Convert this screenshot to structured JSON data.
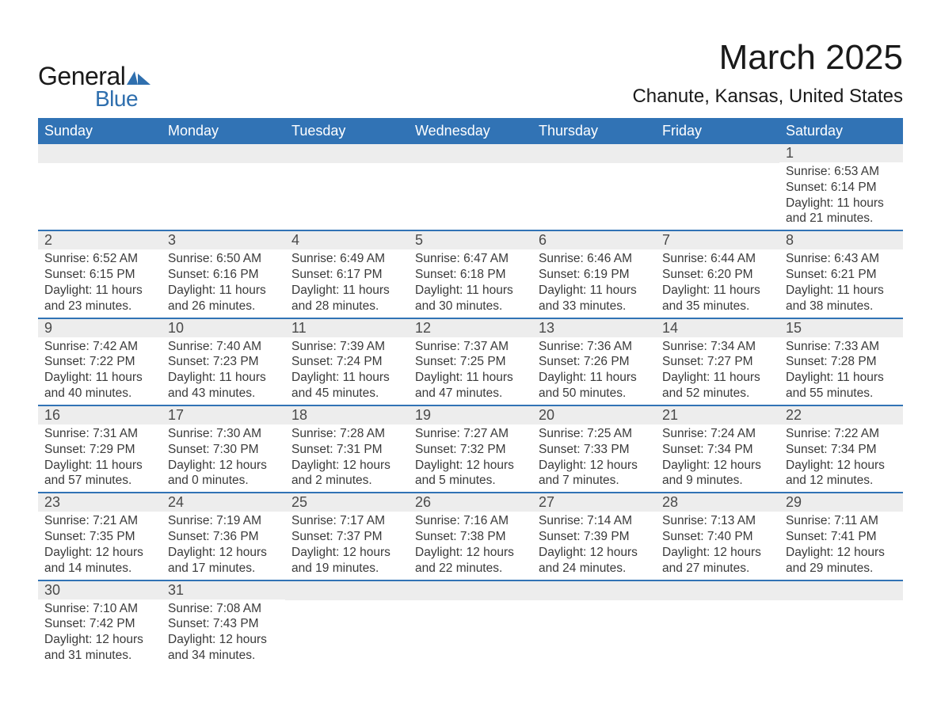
{
  "logo": {
    "general": "General",
    "blue": "Blue"
  },
  "title": "March 2025",
  "location": "Chanute, Kansas, United States",
  "colors": {
    "header_bg": "#3173b5",
    "header_text": "#ffffff",
    "daynum_bg": "#ededed",
    "text": "#3a3a3a",
    "logo_blue": "#2f6fae"
  },
  "day_names": [
    "Sunday",
    "Monday",
    "Tuesday",
    "Wednesday",
    "Thursday",
    "Friday",
    "Saturday"
  ],
  "weeks": [
    [
      {
        "n": "",
        "sr": "",
        "ss": "",
        "dl": ""
      },
      {
        "n": "",
        "sr": "",
        "ss": "",
        "dl": ""
      },
      {
        "n": "",
        "sr": "",
        "ss": "",
        "dl": ""
      },
      {
        "n": "",
        "sr": "",
        "ss": "",
        "dl": ""
      },
      {
        "n": "",
        "sr": "",
        "ss": "",
        "dl": ""
      },
      {
        "n": "",
        "sr": "",
        "ss": "",
        "dl": ""
      },
      {
        "n": "1",
        "sr": "Sunrise: 6:53 AM",
        "ss": "Sunset: 6:14 PM",
        "dl": "Daylight: 11 hours and 21 minutes."
      }
    ],
    [
      {
        "n": "2",
        "sr": "Sunrise: 6:52 AM",
        "ss": "Sunset: 6:15 PM",
        "dl": "Daylight: 11 hours and 23 minutes."
      },
      {
        "n": "3",
        "sr": "Sunrise: 6:50 AM",
        "ss": "Sunset: 6:16 PM",
        "dl": "Daylight: 11 hours and 26 minutes."
      },
      {
        "n": "4",
        "sr": "Sunrise: 6:49 AM",
        "ss": "Sunset: 6:17 PM",
        "dl": "Daylight: 11 hours and 28 minutes."
      },
      {
        "n": "5",
        "sr": "Sunrise: 6:47 AM",
        "ss": "Sunset: 6:18 PM",
        "dl": "Daylight: 11 hours and 30 minutes."
      },
      {
        "n": "6",
        "sr": "Sunrise: 6:46 AM",
        "ss": "Sunset: 6:19 PM",
        "dl": "Daylight: 11 hours and 33 minutes."
      },
      {
        "n": "7",
        "sr": "Sunrise: 6:44 AM",
        "ss": "Sunset: 6:20 PM",
        "dl": "Daylight: 11 hours and 35 minutes."
      },
      {
        "n": "8",
        "sr": "Sunrise: 6:43 AM",
        "ss": "Sunset: 6:21 PM",
        "dl": "Daylight: 11 hours and 38 minutes."
      }
    ],
    [
      {
        "n": "9",
        "sr": "Sunrise: 7:42 AM",
        "ss": "Sunset: 7:22 PM",
        "dl": "Daylight: 11 hours and 40 minutes."
      },
      {
        "n": "10",
        "sr": "Sunrise: 7:40 AM",
        "ss": "Sunset: 7:23 PM",
        "dl": "Daylight: 11 hours and 43 minutes."
      },
      {
        "n": "11",
        "sr": "Sunrise: 7:39 AM",
        "ss": "Sunset: 7:24 PM",
        "dl": "Daylight: 11 hours and 45 minutes."
      },
      {
        "n": "12",
        "sr": "Sunrise: 7:37 AM",
        "ss": "Sunset: 7:25 PM",
        "dl": "Daylight: 11 hours and 47 minutes."
      },
      {
        "n": "13",
        "sr": "Sunrise: 7:36 AM",
        "ss": "Sunset: 7:26 PM",
        "dl": "Daylight: 11 hours and 50 minutes."
      },
      {
        "n": "14",
        "sr": "Sunrise: 7:34 AM",
        "ss": "Sunset: 7:27 PM",
        "dl": "Daylight: 11 hours and 52 minutes."
      },
      {
        "n": "15",
        "sr": "Sunrise: 7:33 AM",
        "ss": "Sunset: 7:28 PM",
        "dl": "Daylight: 11 hours and 55 minutes."
      }
    ],
    [
      {
        "n": "16",
        "sr": "Sunrise: 7:31 AM",
        "ss": "Sunset: 7:29 PM",
        "dl": "Daylight: 11 hours and 57 minutes."
      },
      {
        "n": "17",
        "sr": "Sunrise: 7:30 AM",
        "ss": "Sunset: 7:30 PM",
        "dl": "Daylight: 12 hours and 0 minutes."
      },
      {
        "n": "18",
        "sr": "Sunrise: 7:28 AM",
        "ss": "Sunset: 7:31 PM",
        "dl": "Daylight: 12 hours and 2 minutes."
      },
      {
        "n": "19",
        "sr": "Sunrise: 7:27 AM",
        "ss": "Sunset: 7:32 PM",
        "dl": "Daylight: 12 hours and 5 minutes."
      },
      {
        "n": "20",
        "sr": "Sunrise: 7:25 AM",
        "ss": "Sunset: 7:33 PM",
        "dl": "Daylight: 12 hours and 7 minutes."
      },
      {
        "n": "21",
        "sr": "Sunrise: 7:24 AM",
        "ss": "Sunset: 7:34 PM",
        "dl": "Daylight: 12 hours and 9 minutes."
      },
      {
        "n": "22",
        "sr": "Sunrise: 7:22 AM",
        "ss": "Sunset: 7:34 PM",
        "dl": "Daylight: 12 hours and 12 minutes."
      }
    ],
    [
      {
        "n": "23",
        "sr": "Sunrise: 7:21 AM",
        "ss": "Sunset: 7:35 PM",
        "dl": "Daylight: 12 hours and 14 minutes."
      },
      {
        "n": "24",
        "sr": "Sunrise: 7:19 AM",
        "ss": "Sunset: 7:36 PM",
        "dl": "Daylight: 12 hours and 17 minutes."
      },
      {
        "n": "25",
        "sr": "Sunrise: 7:17 AM",
        "ss": "Sunset: 7:37 PM",
        "dl": "Daylight: 12 hours and 19 minutes."
      },
      {
        "n": "26",
        "sr": "Sunrise: 7:16 AM",
        "ss": "Sunset: 7:38 PM",
        "dl": "Daylight: 12 hours and 22 minutes."
      },
      {
        "n": "27",
        "sr": "Sunrise: 7:14 AM",
        "ss": "Sunset: 7:39 PM",
        "dl": "Daylight: 12 hours and 24 minutes."
      },
      {
        "n": "28",
        "sr": "Sunrise: 7:13 AM",
        "ss": "Sunset: 7:40 PM",
        "dl": "Daylight: 12 hours and 27 minutes."
      },
      {
        "n": "29",
        "sr": "Sunrise: 7:11 AM",
        "ss": "Sunset: 7:41 PM",
        "dl": "Daylight: 12 hours and 29 minutes."
      }
    ],
    [
      {
        "n": "30",
        "sr": "Sunrise: 7:10 AM",
        "ss": "Sunset: 7:42 PM",
        "dl": "Daylight: 12 hours and 31 minutes."
      },
      {
        "n": "31",
        "sr": "Sunrise: 7:08 AM",
        "ss": "Sunset: 7:43 PM",
        "dl": "Daylight: 12 hours and 34 minutes."
      },
      {
        "n": "",
        "sr": "",
        "ss": "",
        "dl": ""
      },
      {
        "n": "",
        "sr": "",
        "ss": "",
        "dl": ""
      },
      {
        "n": "",
        "sr": "",
        "ss": "",
        "dl": ""
      },
      {
        "n": "",
        "sr": "",
        "ss": "",
        "dl": ""
      },
      {
        "n": "",
        "sr": "",
        "ss": "",
        "dl": ""
      }
    ]
  ]
}
